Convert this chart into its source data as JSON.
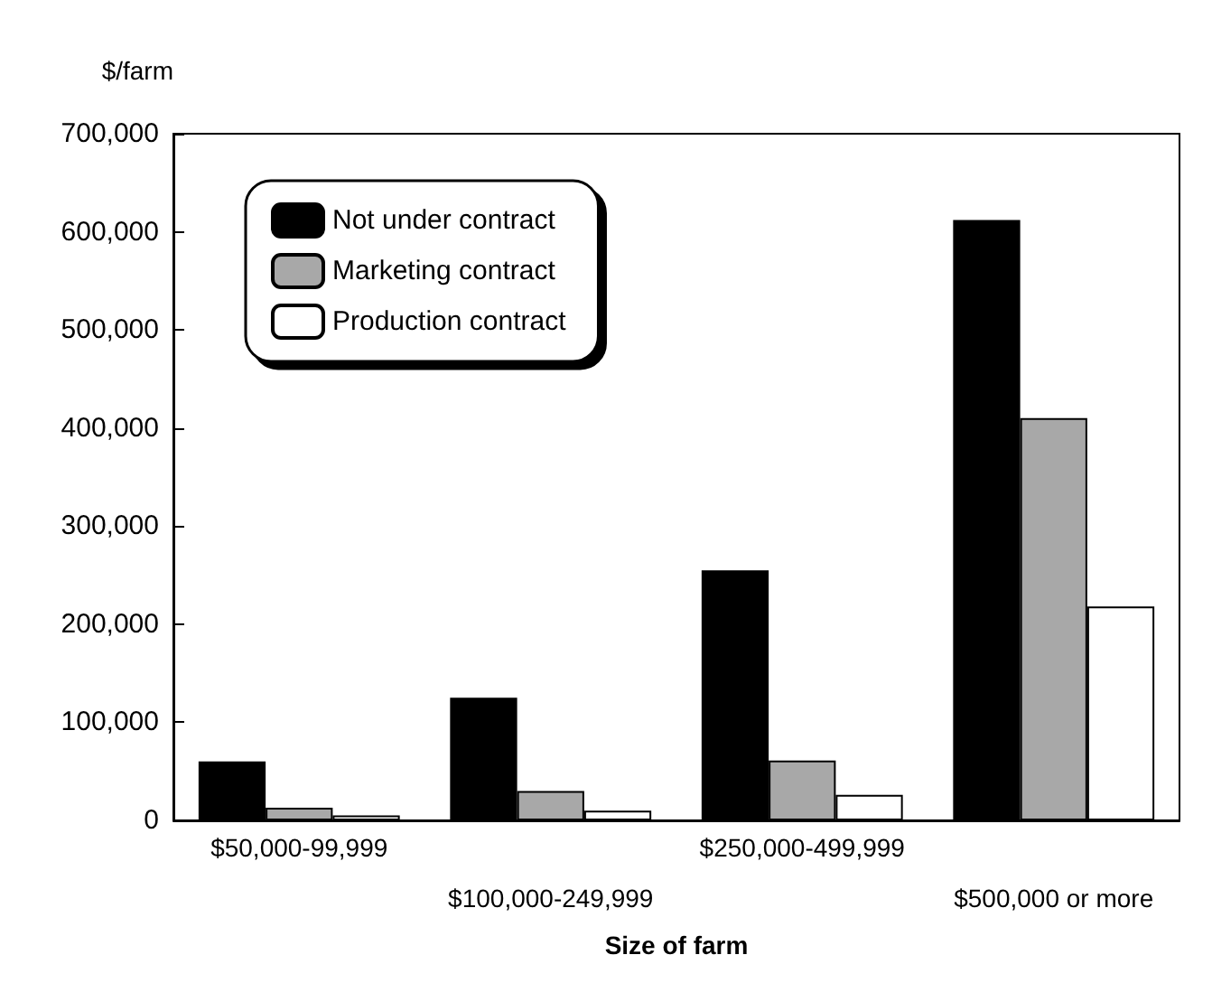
{
  "chart_data": {
    "type": "bar",
    "ylabel": "$/farm",
    "xlabel": "Size of farm",
    "categories": [
      "$50,000-99,999",
      "$100,000-249,999",
      "$250,000-499,999",
      "$500,000 or more"
    ],
    "series": [
      {
        "name": "Not under contract",
        "color": "#000000",
        "values": [
          60000,
          125000,
          255000,
          612000
        ]
      },
      {
        "name": "Marketing contract",
        "color": "#a8a8a8",
        "values": [
          13000,
          30000,
          61000,
          410000
        ]
      },
      {
        "name": "Production contract",
        "color": "#ffffff",
        "values": [
          5000,
          10000,
          26000,
          218000
        ]
      }
    ],
    "ylim": [
      0,
      700000
    ],
    "yticks": [
      {
        "value": 0,
        "label": "0"
      },
      {
        "value": 100000,
        "label": "100,000"
      },
      {
        "value": 200000,
        "label": "200,000"
      },
      {
        "value": 300000,
        "label": "300,000"
      },
      {
        "value": 400000,
        "label": "400,000"
      },
      {
        "value": 500000,
        "label": "500,000"
      },
      {
        "value": 600000,
        "label": "600,000"
      },
      {
        "value": 700000,
        "label": "700,000"
      }
    ],
    "legend": "top left",
    "grid": false
  }
}
